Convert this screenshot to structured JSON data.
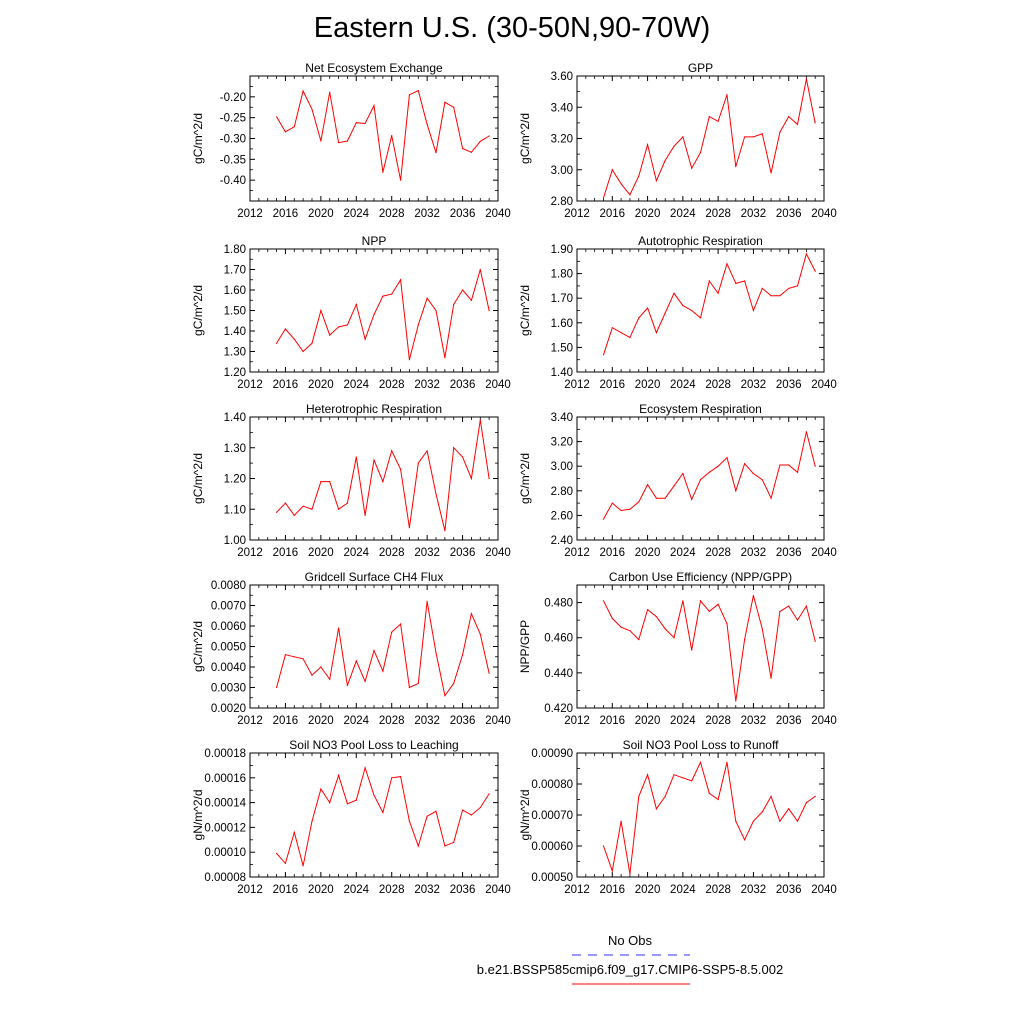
{
  "figure": {
    "title": "Eastern U.S. (30-50N,90-70W)",
    "legend": [
      {
        "label": "No Obs",
        "color": "#3333ff",
        "style": "dashed"
      },
      {
        "label": "b.e21.BSSP585cmip6.f09_g17.CMIP6-SSP5-8.5.002",
        "color": "#ff0000",
        "style": "solid"
      }
    ]
  },
  "chart_data": [
    {
      "type": "line",
      "title": "Net Ecosystem Exchange",
      "ylabel": "gC/m^2/d",
      "xlim": [
        2012,
        2040
      ],
      "xticks": [
        "2012",
        "2016",
        "2020",
        "2024",
        "2028",
        "2032",
        "2036",
        "2040"
      ],
      "ylim": [
        -0.45,
        -0.15
      ],
      "yticks": [
        "-0.20",
        "-0.25",
        "-0.30",
        "-0.35",
        "-0.40"
      ],
      "series": [
        {
          "color": "#ff0000",
          "x": [
            2015,
            2016,
            2017,
            2018,
            2019,
            2020,
            2021,
            2022,
            2023,
            2024,
            2025,
            2026,
            2027,
            2028,
            2029,
            2030,
            2031,
            2032,
            2033,
            2034,
            2035,
            2036,
            2037,
            2038,
            2039
          ],
          "values": [
            -0.248,
            -0.284,
            -0.272,
            -0.186,
            -0.23,
            -0.306,
            -0.189,
            -0.31,
            -0.306,
            -0.262,
            -0.264,
            -0.221,
            -0.381,
            -0.293,
            -0.4,
            -0.195,
            -0.185,
            -0.266,
            -0.334,
            -0.213,
            -0.225,
            -0.324,
            -0.333,
            -0.307,
            -0.294
          ]
        }
      ]
    },
    {
      "type": "line",
      "title": "GPP",
      "ylabel": "gC/m^2/d",
      "xlim": [
        2012,
        2040
      ],
      "xticks": [
        "2012",
        "2016",
        "2020",
        "2024",
        "2028",
        "2032",
        "2036",
        "2040"
      ],
      "ylim": [
        2.8,
        3.6
      ],
      "yticks": [
        "3.60",
        "3.40",
        "3.20",
        "3.00",
        "2.80"
      ],
      "series": [
        {
          "color": "#ff0000",
          "x": [
            2015,
            2016,
            2017,
            2018,
            2019,
            2020,
            2021,
            2022,
            2023,
            2024,
            2025,
            2026,
            2027,
            2028,
            2029,
            2030,
            2031,
            2032,
            2033,
            2034,
            2035,
            2036,
            2037,
            2038,
            2039
          ],
          "values": [
            2.82,
            3.0,
            2.91,
            2.84,
            2.96,
            3.16,
            2.93,
            3.06,
            3.15,
            3.21,
            3.01,
            3.11,
            3.34,
            3.31,
            3.48,
            3.02,
            3.21,
            3.21,
            3.23,
            2.98,
            3.24,
            3.34,
            3.29,
            3.58,
            3.3
          ]
        }
      ]
    },
    {
      "type": "line",
      "title": "NPP",
      "ylabel": "gC/m^2/d",
      "xlim": [
        2012,
        2040
      ],
      "xticks": [
        "2012",
        "2016",
        "2020",
        "2024",
        "2028",
        "2032",
        "2036",
        "2040"
      ],
      "ylim": [
        1.2,
        1.8
      ],
      "yticks": [
        "1.80",
        "1.70",
        "1.60",
        "1.50",
        "1.40",
        "1.30",
        "1.20"
      ],
      "series": [
        {
          "color": "#ff0000",
          "x": [
            2015,
            2016,
            2017,
            2018,
            2019,
            2020,
            2021,
            2022,
            2023,
            2024,
            2025,
            2026,
            2027,
            2028,
            2029,
            2030,
            2031,
            2032,
            2033,
            2034,
            2035,
            2036,
            2037,
            2038,
            2039
          ],
          "values": [
            1.34,
            1.41,
            1.36,
            1.3,
            1.34,
            1.5,
            1.38,
            1.42,
            1.43,
            1.53,
            1.36,
            1.48,
            1.57,
            1.58,
            1.65,
            1.26,
            1.43,
            1.56,
            1.5,
            1.27,
            1.53,
            1.6,
            1.55,
            1.7,
            1.5
          ]
        }
      ]
    },
    {
      "type": "line",
      "title": "Autotrophic Respiration",
      "ylabel": "gC/m^2/d",
      "xlim": [
        2012,
        2040
      ],
      "xticks": [
        "2012",
        "2016",
        "2020",
        "2024",
        "2028",
        "2032",
        "2036",
        "2040"
      ],
      "ylim": [
        1.4,
        1.9
      ],
      "yticks": [
        "1.90",
        "1.80",
        "1.70",
        "1.60",
        "1.50",
        "1.40"
      ],
      "series": [
        {
          "color": "#ff0000",
          "x": [
            2015,
            2016,
            2017,
            2018,
            2019,
            2020,
            2021,
            2022,
            2023,
            2024,
            2025,
            2026,
            2027,
            2028,
            2029,
            2030,
            2031,
            2032,
            2033,
            2034,
            2035,
            2036,
            2037,
            2038,
            2039
          ],
          "values": [
            1.47,
            1.58,
            1.56,
            1.54,
            1.62,
            1.66,
            1.56,
            1.64,
            1.72,
            1.67,
            1.65,
            1.62,
            1.77,
            1.72,
            1.84,
            1.76,
            1.77,
            1.65,
            1.74,
            1.71,
            1.71,
            1.74,
            1.75,
            1.88,
            1.81
          ]
        }
      ]
    },
    {
      "type": "line",
      "title": "Heterotrophic Respiration",
      "ylabel": "gC/m^2/d",
      "xlim": [
        2012,
        2040
      ],
      "xticks": [
        "2012",
        "2016",
        "2020",
        "2024",
        "2028",
        "2032",
        "2036",
        "2040"
      ],
      "ylim": [
        1.0,
        1.4
      ],
      "yticks": [
        "1.40",
        "1.30",
        "1.20",
        "1.10",
        "1.00"
      ],
      "series": [
        {
          "color": "#ff0000",
          "x": [
            2015,
            2016,
            2017,
            2018,
            2019,
            2020,
            2021,
            2022,
            2023,
            2024,
            2025,
            2026,
            2027,
            2028,
            2029,
            2030,
            2031,
            2032,
            2033,
            2034,
            2035,
            2036,
            2037,
            2038,
            2039
          ],
          "values": [
            1.09,
            1.12,
            1.08,
            1.11,
            1.1,
            1.19,
            1.19,
            1.1,
            1.12,
            1.27,
            1.08,
            1.26,
            1.19,
            1.29,
            1.23,
            1.04,
            1.25,
            1.29,
            1.15,
            1.03,
            1.3,
            1.27,
            1.2,
            1.39,
            1.2
          ]
        }
      ]
    },
    {
      "type": "line",
      "title": "Ecosystem Respiration",
      "ylabel": "gC/m^2/d",
      "xlim": [
        2012,
        2040
      ],
      "xticks": [
        "2012",
        "2016",
        "2020",
        "2024",
        "2028",
        "2032",
        "2036",
        "2040"
      ],
      "ylim": [
        2.4,
        3.4
      ],
      "yticks": [
        "3.40",
        "3.20",
        "3.00",
        "2.80",
        "2.60",
        "2.40"
      ],
      "series": [
        {
          "color": "#ff0000",
          "x": [
            2015,
            2016,
            2017,
            2018,
            2019,
            2020,
            2021,
            2022,
            2023,
            2024,
            2025,
            2026,
            2027,
            2028,
            2029,
            2030,
            2031,
            2032,
            2033,
            2034,
            2035,
            2036,
            2037,
            2038,
            2039
          ],
          "values": [
            2.57,
            2.7,
            2.64,
            2.65,
            2.71,
            2.85,
            2.74,
            2.74,
            2.84,
            2.94,
            2.73,
            2.89,
            2.95,
            3.0,
            3.07,
            2.8,
            3.02,
            2.94,
            2.89,
            2.74,
            3.01,
            3.01,
            2.95,
            3.28,
            3.0
          ]
        }
      ]
    },
    {
      "type": "line",
      "title": "Gridcell Surface CH4 Flux",
      "ylabel": "gC/m^2/d",
      "xlim": [
        2012,
        2040
      ],
      "xticks": [
        "2012",
        "2016",
        "2020",
        "2024",
        "2028",
        "2032",
        "2036",
        "2040"
      ],
      "ylim": [
        0.002,
        0.008
      ],
      "yticks": [
        "0.0080",
        "0.0070",
        "0.0060",
        "0.0050",
        "0.0040",
        "0.0030",
        "0.0020"
      ],
      "series": [
        {
          "color": "#ff0000",
          "x": [
            2015,
            2016,
            2017,
            2018,
            2019,
            2020,
            2021,
            2022,
            2023,
            2024,
            2025,
            2026,
            2027,
            2028,
            2029,
            2030,
            2031,
            2032,
            2033,
            2034,
            2035,
            2036,
            2037,
            2038,
            2039
          ],
          "values": [
            0.003,
            0.0046,
            0.0045,
            0.0044,
            0.0036,
            0.004,
            0.0034,
            0.0059,
            0.0031,
            0.0043,
            0.0033,
            0.0048,
            0.0038,
            0.0057,
            0.0061,
            0.003,
            0.0032,
            0.0072,
            0.0047,
            0.0026,
            0.0032,
            0.0046,
            0.0066,
            0.0056,
            0.0037
          ]
        }
      ]
    },
    {
      "type": "line",
      "title": "Carbon Use Efficiency (NPP/GPP)",
      "ylabel": "NPP/GPP",
      "xlim": [
        2012,
        2040
      ],
      "xticks": [
        "2012",
        "2016",
        "2020",
        "2024",
        "2028",
        "2032",
        "2036",
        "2040"
      ],
      "ylim": [
        0.42,
        0.49
      ],
      "yticks": [
        "0.480",
        "0.460",
        "0.440",
        "0.420"
      ],
      "series": [
        {
          "color": "#ff0000",
          "x": [
            2015,
            2016,
            2017,
            2018,
            2019,
            2020,
            2021,
            2022,
            2023,
            2024,
            2025,
            2026,
            2027,
            2028,
            2029,
            2030,
            2031,
            2032,
            2033,
            2034,
            2035,
            2036,
            2037,
            2038,
            2039
          ],
          "values": [
            0.481,
            0.471,
            0.466,
            0.464,
            0.459,
            0.476,
            0.472,
            0.465,
            0.46,
            0.481,
            0.453,
            0.481,
            0.475,
            0.479,
            0.468,
            0.424,
            0.459,
            0.484,
            0.465,
            0.437,
            0.475,
            0.478,
            0.47,
            0.478,
            0.458
          ]
        }
      ]
    },
    {
      "type": "line",
      "title": "Soil NO3 Pool Loss to Leaching",
      "ylabel": "gN/m^2/d",
      "xlim": [
        2012,
        2040
      ],
      "xticks": [
        "2012",
        "2016",
        "2020",
        "2024",
        "2028",
        "2032",
        "2036",
        "2040"
      ],
      "ylim": [
        8e-05,
        0.00018
      ],
      "yticks": [
        "0.00018",
        "0.00016",
        "0.00014",
        "0.00012",
        "0.00010",
        "0.00008"
      ],
      "series": [
        {
          "color": "#ff0000",
          "x": [
            2015,
            2016,
            2017,
            2018,
            2019,
            2020,
            2021,
            2022,
            2023,
            2024,
            2025,
            2026,
            2027,
            2028,
            2029,
            2030,
            2031,
            2032,
            2033,
            2034,
            2035,
            2036,
            2037,
            2038,
            2039
          ],
          "values": [
            9.9e-05,
            9.1e-05,
            0.000116,
            8.9e-05,
            0.000125,
            0.000151,
            0.00014,
            0.000162,
            0.000139,
            0.000142,
            0.000168,
            0.000146,
            0.000132,
            0.00016,
            0.000161,
            0.000125,
            0.000105,
            0.000129,
            0.000133,
            0.000105,
            0.000108,
            0.000134,
            0.00013,
            0.000136,
            0.000147
          ]
        }
      ]
    },
    {
      "type": "line",
      "title": "Soil NO3 Pool Loss to Runoff",
      "ylabel": "gN/m^2/d",
      "xlim": [
        2012,
        2040
      ],
      "xticks": [
        "2012",
        "2016",
        "2020",
        "2024",
        "2028",
        "2032",
        "2036",
        "2040"
      ],
      "ylim": [
        0.0005,
        0.0009
      ],
      "yticks": [
        "0.00090",
        "0.00080",
        "0.00070",
        "0.00060",
        "0.00050"
      ],
      "series": [
        {
          "color": "#ff0000",
          "x": [
            2015,
            2016,
            2017,
            2018,
            2019,
            2020,
            2021,
            2022,
            2023,
            2024,
            2025,
            2026,
            2027,
            2028,
            2029,
            2030,
            2031,
            2032,
            2033,
            2034,
            2035,
            2036,
            2037,
            2038,
            2039
          ],
          "values": [
            0.0006,
            0.00052,
            0.00068,
            0.00051,
            0.00076,
            0.00083,
            0.00072,
            0.00076,
            0.00083,
            0.00082,
            0.00081,
            0.00087,
            0.00077,
            0.00075,
            0.00087,
            0.00068,
            0.00062,
            0.00068,
            0.00071,
            0.00076,
            0.00068,
            0.00072,
            0.00068,
            0.00074,
            0.00076
          ]
        }
      ]
    }
  ]
}
